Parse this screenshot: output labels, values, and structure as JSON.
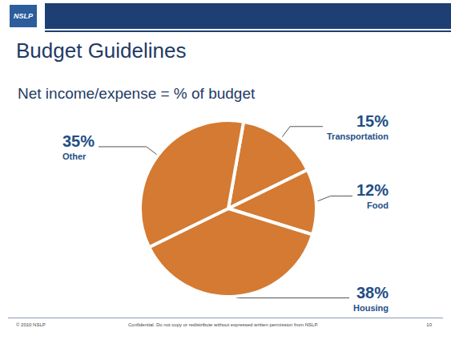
{
  "slide": {
    "logo": "NSLP",
    "footer_left": "© 2010 NSLP",
    "footer_center": "Confidential. Do not copy or redistribute without expressed written permission from NSLP.",
    "page": "10"
  },
  "chart_data": {
    "type": "pie",
    "title": "Budget Guidelines",
    "subtitle": "Net income/expense = % of budget",
    "categories": [
      "Transportation",
      "Food",
      "Housing",
      "Other"
    ],
    "values": [
      15,
      12,
      38,
      35
    ],
    "value_labels": [
      "15%",
      "12%",
      "38%",
      "35%"
    ],
    "color": "#d47a32",
    "data_labels": true
  }
}
